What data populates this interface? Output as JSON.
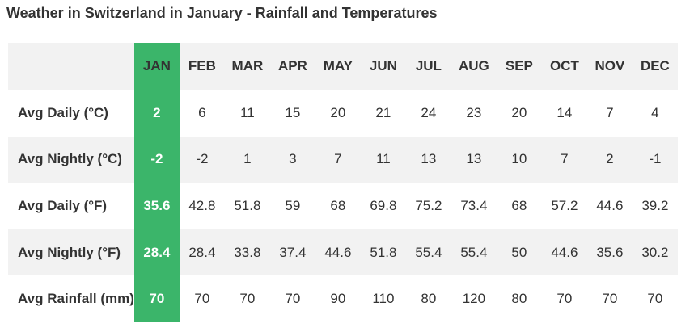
{
  "title": "Weather in Switzerland in January - Rainfall and Temperatures",
  "colors": {
    "highlight": "#3bb56a",
    "shaded_row": "#f2f2f2",
    "text": "#333333"
  },
  "table": {
    "highlight_month_index": 0,
    "months": [
      "JAN",
      "FEB",
      "MAR",
      "APR",
      "MAY",
      "JUN",
      "JUL",
      "AUG",
      "SEP",
      "OCT",
      "NOV",
      "DEC"
    ],
    "rows": [
      {
        "label": "Avg Daily (°C)",
        "values": [
          "2",
          "6",
          "11",
          "15",
          "20",
          "21",
          "24",
          "23",
          "20",
          "14",
          "7",
          "4"
        ]
      },
      {
        "label": "Avg Nightly (°C)",
        "values": [
          "-2",
          "-2",
          "1",
          "3",
          "7",
          "11",
          "13",
          "13",
          "10",
          "7",
          "2",
          "-1"
        ]
      },
      {
        "label": "Avg Daily (°F)",
        "values": [
          "35.6",
          "42.8",
          "51.8",
          "59",
          "68",
          "69.8",
          "75.2",
          "73.4",
          "68",
          "57.2",
          "44.6",
          "39.2"
        ]
      },
      {
        "label": "Avg Nightly (°F)",
        "values": [
          "28.4",
          "28.4",
          "33.8",
          "37.4",
          "44.6",
          "51.8",
          "55.4",
          "55.4",
          "50",
          "44.6",
          "35.6",
          "30.2"
        ]
      },
      {
        "label": "Avg Rainfall (mm)",
        "values": [
          "70",
          "70",
          "70",
          "70",
          "90",
          "110",
          "80",
          "120",
          "80",
          "70",
          "70",
          "70"
        ]
      }
    ]
  }
}
